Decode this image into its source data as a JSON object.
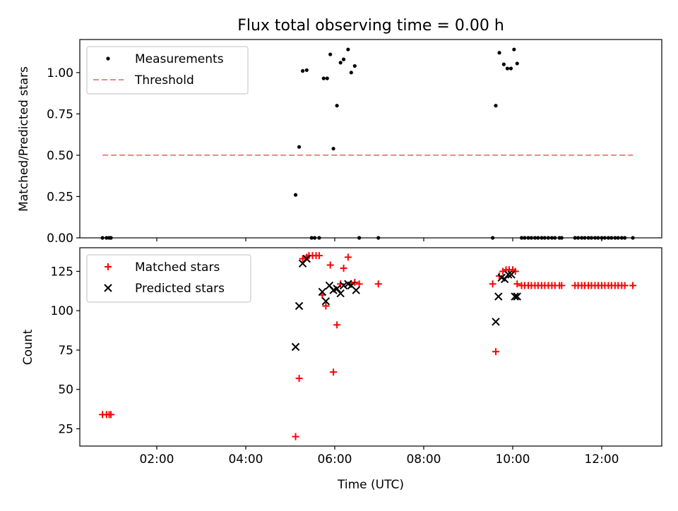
{
  "chart_data": [
    {
      "type": "scatter",
      "title": "Flux total observing time = 0.00 h",
      "xlabel": "",
      "ylabel": "Matched/Predicted stars",
      "xlim": [
        0.27,
        13.35
      ],
      "ylim": [
        0,
        1.2
      ],
      "yticks": [
        0,
        0.25,
        0.5,
        0.75,
        1.0
      ],
      "ytick_labels": [
        "0.00",
        "0.25",
        "0.50",
        "0.75",
        "1.00"
      ],
      "legend": {
        "placement": "top-left",
        "entries": [
          "Measurements",
          "Threshold"
        ]
      },
      "series": [
        {
          "name": "Measurements",
          "marker": "dot",
          "color": "#000000",
          "points": [
            [
              0.78,
              0
            ],
            [
              0.87,
              0
            ],
            [
              0.93,
              0
            ],
            [
              0.97,
              0
            ],
            [
              5.12,
              0.26
            ],
            [
              5.2,
              0.55
            ],
            [
              5.28,
              1.01
            ],
            [
              5.37,
              1.015
            ],
            [
              5.48,
              0
            ],
            [
              5.55,
              0
            ],
            [
              5.65,
              0
            ],
            [
              5.75,
              0.965
            ],
            [
              5.83,
              0.965
            ],
            [
              5.9,
              1.11
            ],
            [
              5.97,
              0.54
            ],
            [
              6.05,
              0.8
            ],
            [
              6.13,
              1.06
            ],
            [
              6.2,
              1.08
            ],
            [
              6.3,
              1.14
            ],
            [
              6.37,
              1.0
            ],
            [
              6.45,
              1.04
            ],
            [
              6.55,
              0
            ],
            [
              6.98,
              0
            ],
            [
              9.55,
              0
            ],
            [
              9.62,
              0.8
            ],
            [
              9.7,
              1.12
            ],
            [
              9.8,
              1.05
            ],
            [
              9.88,
              1.025
            ],
            [
              9.96,
              1.025
            ],
            [
              10.03,
              1.14
            ],
            [
              10.1,
              1.055
            ],
            [
              10.2,
              0
            ],
            [
              10.27,
              0
            ],
            [
              10.35,
              0
            ],
            [
              10.42,
              0
            ],
            [
              10.5,
              0
            ],
            [
              10.57,
              0
            ],
            [
              10.65,
              0
            ],
            [
              10.72,
              0
            ],
            [
              10.8,
              0
            ],
            [
              10.88,
              0
            ],
            [
              10.95,
              0
            ],
            [
              11.05,
              0
            ],
            [
              11.1,
              0
            ],
            [
              11.4,
              0
            ],
            [
              11.47,
              0
            ],
            [
              11.55,
              0
            ],
            [
              11.62,
              0
            ],
            [
              11.7,
              0
            ],
            [
              11.77,
              0
            ],
            [
              11.85,
              0
            ],
            [
              11.92,
              0
            ],
            [
              12.0,
              0
            ],
            [
              12.07,
              0
            ],
            [
              12.15,
              0
            ],
            [
              12.22,
              0
            ],
            [
              12.3,
              0
            ],
            [
              12.37,
              0
            ],
            [
              12.45,
              0
            ],
            [
              12.52,
              0
            ],
            [
              12.7,
              0
            ]
          ]
        },
        {
          "name": "Threshold",
          "marker": "dashed-line",
          "color": "#ff7f7f",
          "points": [
            [
              0.78,
              0.5
            ],
            [
              12.7,
              0.5
            ]
          ]
        }
      ]
    },
    {
      "type": "scatter",
      "title": "",
      "xlabel": "Time (UTC)",
      "ylabel": "Count",
      "xlim": [
        0.27,
        13.35
      ],
      "ylim": [
        14,
        140
      ],
      "xticks": [
        2,
        4,
        6,
        8,
        10,
        12
      ],
      "xtick_labels": [
        "02:00",
        "04:00",
        "06:00",
        "08:00",
        "10:00",
        "12:00"
      ],
      "yticks": [
        25,
        50,
        75,
        100,
        125
      ],
      "ytick_labels": [
        "25",
        "50",
        "75",
        "100",
        "125"
      ],
      "legend": {
        "placement": "top-left",
        "entries": [
          "Matched stars",
          "Predicted stars"
        ]
      },
      "series": [
        {
          "name": "Matched stars",
          "marker": "plus",
          "color": "#ff0000",
          "points": [
            [
              0.78,
              34
            ],
            [
              0.87,
              34
            ],
            [
              0.93,
              34
            ],
            [
              0.97,
              34
            ],
            [
              5.12,
              20
            ],
            [
              5.2,
              57
            ],
            [
              5.28,
              133
            ],
            [
              5.37,
              134
            ],
            [
              5.42,
              135
            ],
            [
              5.5,
              135
            ],
            [
              5.58,
              135
            ],
            [
              5.65,
              135
            ],
            [
              5.72,
              110
            ],
            [
              5.8,
              103
            ],
            [
              5.9,
              129
            ],
            [
              5.97,
              61
            ],
            [
              6.05,
              91
            ],
            [
              6.13,
              117
            ],
            [
              6.2,
              127
            ],
            [
              6.3,
              134
            ],
            [
              6.37,
              117
            ],
            [
              6.45,
              118
            ],
            [
              6.55,
              117
            ],
            [
              6.98,
              117
            ],
            [
              9.55,
              117
            ],
            [
              9.62,
              74
            ],
            [
              9.7,
              122
            ],
            [
              9.78,
              125
            ],
            [
              9.85,
              126
            ],
            [
              9.92,
              126
            ],
            [
              10.0,
              126
            ],
            [
              10.06,
              125
            ],
            [
              10.1,
              117
            ],
            [
              10.2,
              116
            ],
            [
              10.27,
              116
            ],
            [
              10.35,
              116
            ],
            [
              10.42,
              116
            ],
            [
              10.5,
              116
            ],
            [
              10.57,
              116
            ],
            [
              10.65,
              116
            ],
            [
              10.72,
              116
            ],
            [
              10.8,
              116
            ],
            [
              10.88,
              116
            ],
            [
              10.95,
              116
            ],
            [
              11.05,
              116
            ],
            [
              11.1,
              116
            ],
            [
              11.4,
              116
            ],
            [
              11.47,
              116
            ],
            [
              11.55,
              116
            ],
            [
              11.62,
              116
            ],
            [
              11.7,
              116
            ],
            [
              11.77,
              116
            ],
            [
              11.85,
              116
            ],
            [
              11.92,
              116
            ],
            [
              12.0,
              116
            ],
            [
              12.07,
              116
            ],
            [
              12.15,
              116
            ],
            [
              12.22,
              116
            ],
            [
              12.3,
              116
            ],
            [
              12.37,
              116
            ],
            [
              12.45,
              116
            ],
            [
              12.52,
              116
            ],
            [
              12.7,
              116
            ]
          ]
        },
        {
          "name": "Predicted stars",
          "marker": "x",
          "color": "#000000",
          "points": [
            [
              5.12,
              77
            ],
            [
              5.2,
              103
            ],
            [
              5.28,
              130
            ],
            [
              5.37,
              133
            ],
            [
              5.72,
              112
            ],
            [
              5.8,
              106
            ],
            [
              5.88,
              116
            ],
            [
              5.97,
              113
            ],
            [
              6.05,
              114
            ],
            [
              6.13,
              111
            ],
            [
              6.2,
              116
            ],
            [
              6.3,
              117
            ],
            [
              6.37,
              116
            ],
            [
              6.48,
              113
            ],
            [
              9.62,
              93
            ],
            [
              9.68,
              109
            ],
            [
              9.75,
              121
            ],
            [
              9.82,
              120
            ],
            [
              9.9,
              123
            ],
            [
              9.97,
              123
            ],
            [
              10.05,
              109
            ],
            [
              10.1,
              109
            ]
          ]
        }
      ]
    }
  ]
}
